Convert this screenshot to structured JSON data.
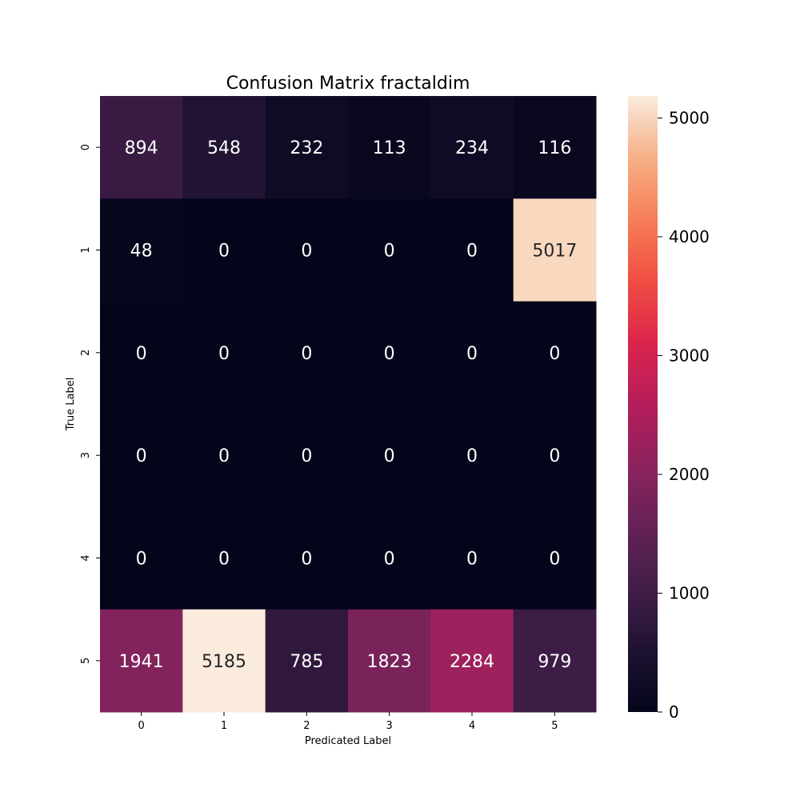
{
  "chart_data": {
    "type": "heatmap",
    "title": "Confusion Matrix fractaldim",
    "xlabel": "Predicated Label",
    "ylabel": "True Label",
    "x_categories": [
      "0",
      "1",
      "2",
      "3",
      "4",
      "5"
    ],
    "y_categories": [
      "0",
      "1",
      "2",
      "3",
      "4",
      "5"
    ],
    "values": [
      [
        894,
        548,
        232,
        113,
        234,
        116
      ],
      [
        48,
        0,
        0,
        0,
        0,
        5017
      ],
      [
        0,
        0,
        0,
        0,
        0,
        0
      ],
      [
        0,
        0,
        0,
        0,
        0,
        0
      ],
      [
        0,
        0,
        0,
        0,
        0,
        0
      ],
      [
        1941,
        5185,
        785,
        1823,
        2284,
        979
      ]
    ],
    "colorbar": {
      "min": 0,
      "max": 5185,
      "ticks": [
        "0",
        "1000",
        "2000",
        "3000",
        "4000",
        "5000"
      ],
      "colormap": "rocket"
    }
  }
}
